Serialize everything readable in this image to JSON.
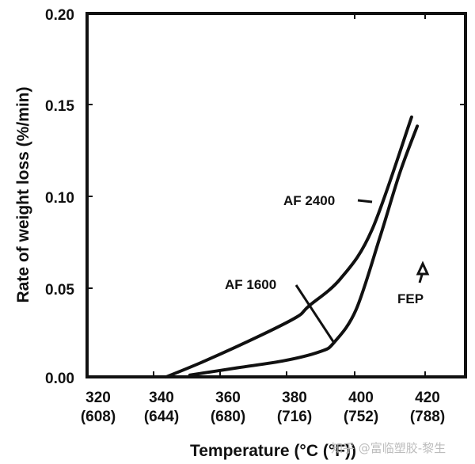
{
  "chart_data": {
    "type": "line",
    "title": "",
    "xlabel": "Temperature (°C (°F))",
    "ylabel": "Rate of weight loss (%/min)",
    "xlim": [
      320,
      432
    ],
    "ylim": [
      0.0,
      0.2
    ],
    "x_ticks": [
      {
        "c": "320",
        "f": "(608)"
      },
      {
        "c": "340",
        "f": "(644)"
      },
      {
        "c": "360",
        "f": "(680)"
      },
      {
        "c": "380",
        "f": "(716)"
      },
      {
        "c": "400",
        "f": "(752)"
      },
      {
        "c": "420",
        "f": "(788)"
      }
    ],
    "y_ticks": [
      "0.00",
      "0.05",
      "0.10",
      "0.15",
      "0.20"
    ],
    "grid": false,
    "legend": "none (inline labels)",
    "series": [
      {
        "name": "AF 2400",
        "x": [
          343.8,
          355.7,
          372.4,
          383.1,
          386.7,
          396.2,
          405.7,
          417.6
        ],
        "y": [
          0.0,
          0.009,
          0.023,
          0.033,
          0.039,
          0.054,
          0.081,
          0.143
        ]
      },
      {
        "name": "AF 1600",
        "x": [
          350.9,
          365.2,
          379.5,
          390.2,
          394.3,
          400.9,
          408.1,
          414.0,
          419.3
        ],
        "y": [
          0.001,
          0.005,
          0.009,
          0.014,
          0.019,
          0.037,
          0.077,
          0.112,
          0.138
        ]
      }
    ],
    "annotations": [
      {
        "text": "AF 2400",
        "points_to": "upper curve"
      },
      {
        "text": "AF 1600",
        "points_to": "lower curve"
      },
      {
        "text": "FEP",
        "marker": "arrow pointing up (off-chart)"
      }
    ]
  },
  "labels": {
    "af2400": "AF 2400",
    "af1600": "AF 1600",
    "fep": "FEP"
  },
  "axes": {
    "ylabel": "Rate of weight  loss (%/min)",
    "xlabel": "Temperature (°C (°F))"
  },
  "watermark": "知乎 @富临塑胶-黎生"
}
